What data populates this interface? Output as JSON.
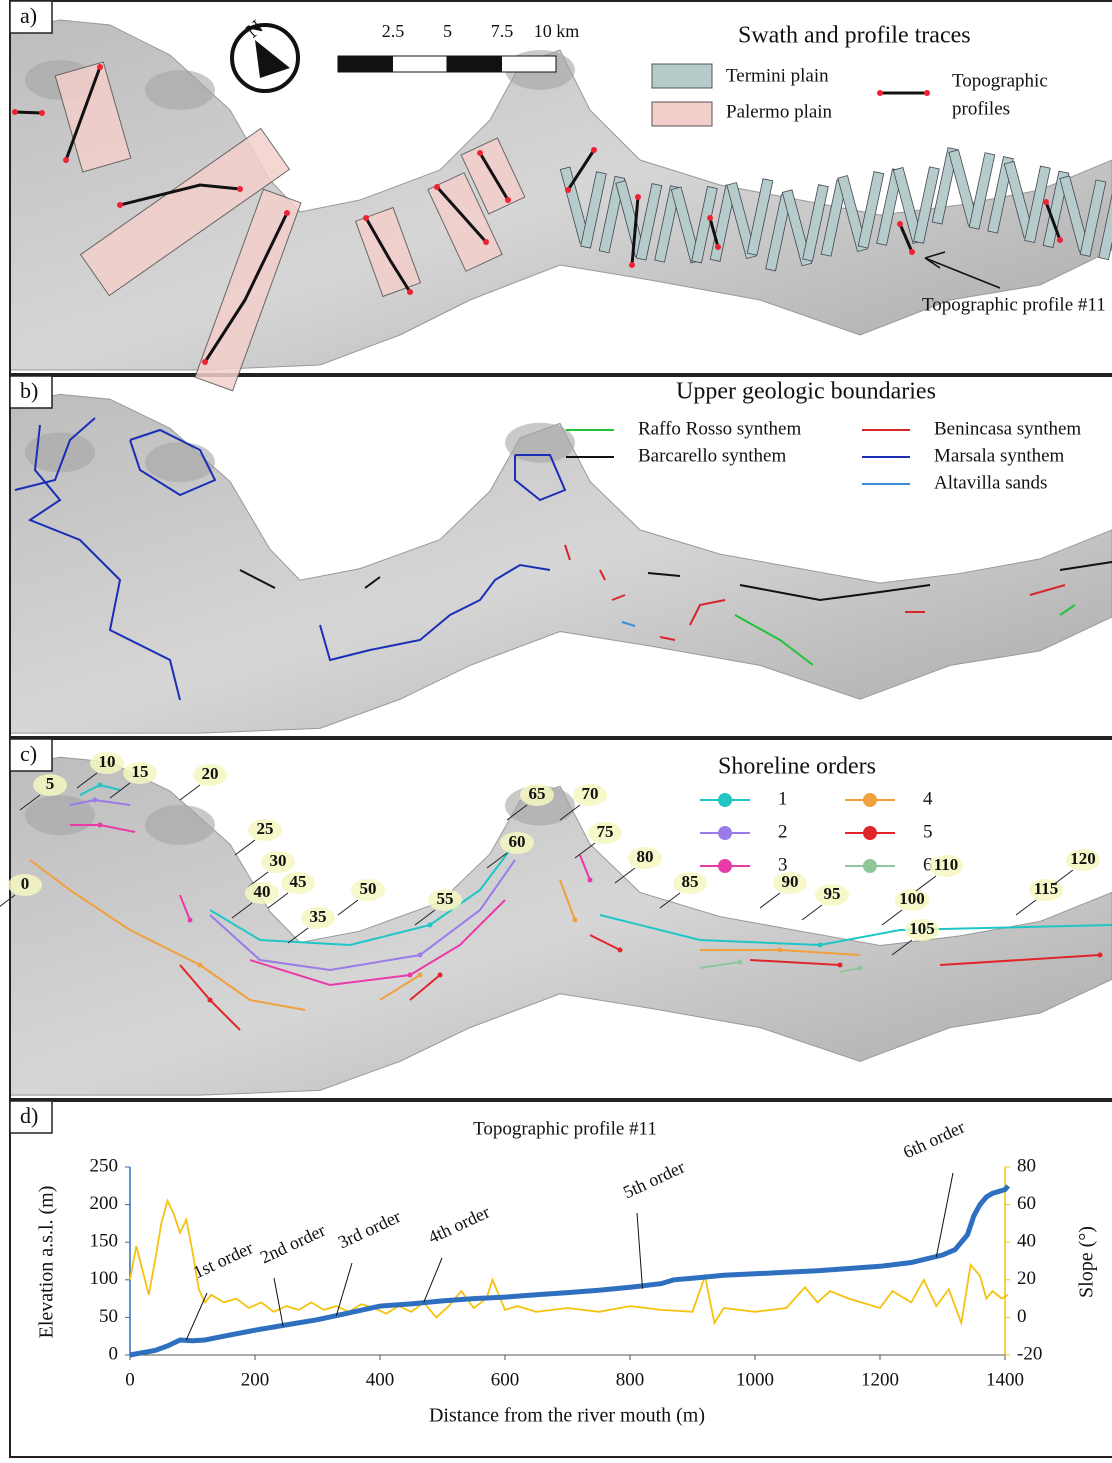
{
  "panels": [
    {
      "label": "a)",
      "north": "N",
      "scale_labels": [
        "2.5",
        "5",
        "7.5",
        "10 km"
      ],
      "legend": {
        "title": "Swath and profile traces",
        "items": [
          {
            "name": "Termini plain",
            "color": "#b5cccb"
          },
          {
            "name": "Palermo plain",
            "color": "#f3cfcb"
          }
        ],
        "profile_legend": [
          "Topographic",
          "profiles"
        ]
      },
      "annotation": "Topographic profile #11"
    },
    {
      "label": "b)",
      "legend": {
        "title": "Upper geologic boundaries",
        "items": [
          {
            "name": "Raffo Rosso synthem",
            "color": "#22c33a"
          },
          {
            "name": "Barcarello synthem",
            "color": "#111111"
          },
          {
            "name": "Benincasa synthem",
            "color": "#d8262a"
          },
          {
            "name": "Marsala synthem",
            "color": "#1a2fb5"
          },
          {
            "name": "Altavilla sands",
            "color": "#3a8fd6"
          }
        ]
      }
    },
    {
      "label": "c)",
      "legend": {
        "title": "Shoreline orders",
        "items": [
          {
            "name": "1",
            "color": "#1fc6c6"
          },
          {
            "name": "2",
            "color": "#9a7be8"
          },
          {
            "name": "3",
            "color": "#ea3aa8"
          },
          {
            "name": "4",
            "color": "#f0a03c"
          },
          {
            "name": "5",
            "color": "#e0262a"
          },
          {
            "name": "6",
            "color": "#8fc69a"
          }
        ]
      },
      "shoreline_labels": [
        "0",
        "5",
        "10",
        "15",
        "20",
        "25",
        "30",
        "35",
        "40",
        "45",
        "50",
        "55",
        "60",
        "65",
        "70",
        "75",
        "80",
        "85",
        "90",
        "95",
        "100",
        "105",
        "110",
        "115",
        "120"
      ]
    },
    {
      "label": "d)"
    }
  ],
  "chart_data": {
    "type": "line",
    "title": "Topographic profile #11",
    "x_label": "Distance from the river mouth (m)",
    "y_label": "Elevation a.s.l. (m)",
    "y2_label": "Slope (°)",
    "xlim": [
      0,
      1400
    ],
    "xticks": [
      0,
      200,
      400,
      600,
      800,
      1000,
      1200,
      1400
    ],
    "ylim": [
      0,
      250
    ],
    "yticks": [
      0,
      50,
      100,
      150,
      200,
      250
    ],
    "y2lim": [
      -20,
      80
    ],
    "y2ticks": [
      -20,
      0,
      20,
      40,
      60,
      80
    ],
    "series": [
      {
        "color": "#2f6fc0",
        "x": [
          0,
          20,
          40,
          60,
          80,
          100,
          120,
          150,
          200,
          250,
          300,
          350,
          400,
          450,
          500,
          550,
          600,
          650,
          700,
          750,
          800,
          850,
          870,
          900,
          950,
          1000,
          1050,
          1100,
          1150,
          1200,
          1250,
          1300,
          1320,
          1340,
          1350,
          1360,
          1370,
          1380,
          1400,
          1405
        ],
        "values": [
          0,
          3,
          6,
          12,
          20,
          19,
          20,
          25,
          33,
          40,
          47,
          56,
          65,
          68,
          72,
          75,
          77,
          80,
          83,
          86,
          90,
          95,
          100,
          102,
          106,
          108,
          110,
          112,
          115,
          118,
          123,
          133,
          140,
          160,
          185,
          200,
          210,
          215,
          220,
          225
        ]
      },
      {
        "color": "#f5c20f",
        "axis": "y2",
        "x": [
          0,
          10,
          20,
          30,
          40,
          50,
          60,
          70,
          80,
          90,
          100,
          110,
          120,
          130,
          150,
          170,
          190,
          210,
          230,
          250,
          270,
          290,
          310,
          330,
          350,
          370,
          390,
          410,
          430,
          450,
          470,
          490,
          510,
          530,
          550,
          570,
          580,
          600,
          620,
          650,
          700,
          750,
          800,
          850,
          900,
          920,
          935,
          950,
          1000,
          1050,
          1080,
          1100,
          1120,
          1150,
          1200,
          1220,
          1250,
          1270,
          1290,
          1310,
          1330,
          1345,
          1360,
          1370,
          1380,
          1395,
          1405
        ],
        "values": [
          20,
          38,
          25,
          12,
          30,
          50,
          62,
          55,
          45,
          52,
          35,
          15,
          8,
          12,
          8,
          10,
          5,
          8,
          3,
          6,
          4,
          8,
          4,
          6,
          3,
          7,
          5,
          2,
          6,
          3,
          8,
          0,
          6,
          14,
          5,
          10,
          20,
          4,
          6,
          3,
          5,
          3,
          6,
          4,
          3,
          22,
          -3,
          5,
          3,
          5,
          16,
          8,
          14,
          10,
          5,
          14,
          8,
          20,
          6,
          15,
          -3,
          28,
          22,
          10,
          14,
          10,
          12
        ]
      }
    ],
    "annotations": [
      "1st order",
      "2nd order",
      "3rd order",
      "4th order",
      "5th order",
      "6th order"
    ]
  }
}
